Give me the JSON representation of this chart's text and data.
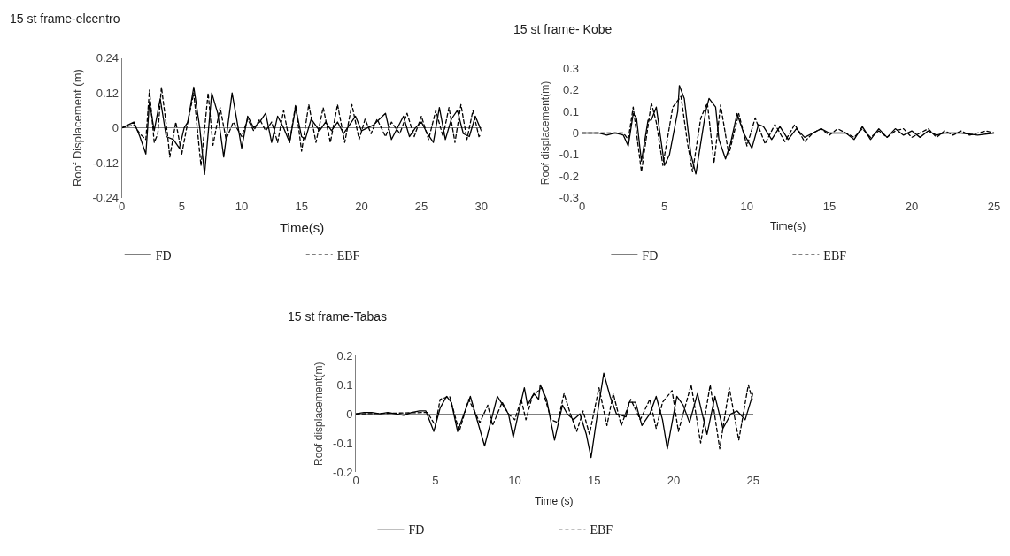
{
  "chart_data": [
    {
      "type": "line",
      "title": "15 st frame-elcentro",
      "xlabel": "Time(s)",
      "ylabel": "Roof Displacement (m)",
      "xlim": [
        0,
        30
      ],
      "xticks": [
        0,
        5,
        10,
        15,
        20,
        25,
        30
      ],
      "ylim": [
        -0.24,
        0.24
      ],
      "yticks": [
        -0.24,
        -0.12,
        0,
        0.12,
        0.24
      ],
      "legend": "bottom",
      "series": [
        {
          "name": "FD",
          "color": "#000000",
          "line_style": "solid",
          "x": [
            0,
            0.5,
            1,
            1.5,
            2,
            2.3,
            2.7,
            3.2,
            3.7,
            4.3,
            4.8,
            5.2,
            5.5,
            6,
            6.5,
            6.9,
            7.5,
            8,
            8.5,
            9.2,
            10,
            10.5,
            11,
            11.5,
            12,
            12.5,
            13,
            13.5,
            14,
            14.5,
            15,
            15.3,
            15.8,
            16.5,
            17,
            17.5,
            18,
            18.5,
            19.5,
            20,
            21,
            22,
            22.5,
            23.5,
            24,
            24.5,
            25,
            25.5,
            26,
            26.5,
            27,
            27.5,
            28,
            28.5,
            29,
            29.5,
            30
          ],
          "values": [
            0,
            0.01,
            0.02,
            -0.03,
            -0.09,
            0.09,
            -0.01,
            0.1,
            -0.03,
            -0.04,
            -0.07,
            0,
            0.02,
            0.14,
            0,
            -0.16,
            0.12,
            0.05,
            -0.1,
            0.12,
            -0.07,
            0.04,
            0,
            0.02,
            0.05,
            -0.05,
            0.04,
            0,
            -0.05,
            0.07,
            -0.03,
            -0.04,
            0.03,
            -0.01,
            0.02,
            -0.01,
            0.02,
            -0.02,
            0.04,
            -0.01,
            0.01,
            0.05,
            -0.04,
            0.04,
            -0.03,
            0,
            0.02,
            -0.02,
            -0.05,
            0.07,
            -0.04,
            0.03,
            0.06,
            -0.02,
            -0.03,
            0.04,
            -0.01
          ]
        },
        {
          "name": "EBF",
          "color": "#000000",
          "line_style": "dashed",
          "x": [
            0,
            1,
            1.5,
            2,
            2.3,
            2.7,
            3,
            3.3,
            3.8,
            4,
            4.5,
            5,
            5.5,
            6,
            6.6,
            7.2,
            7.6,
            8.2,
            8.7,
            9.3,
            10,
            10.5,
            11,
            11.5,
            12,
            12.5,
            13,
            13.5,
            14,
            14.5,
            15,
            15.6,
            16.2,
            16.8,
            17.4,
            18,
            18.6,
            19.2,
            19.8,
            20.3,
            20.8,
            21.3,
            22,
            22.5,
            23.2,
            23.8,
            24.4,
            25,
            25.6,
            26.2,
            26.8,
            27.3,
            27.8,
            28.3,
            28.8,
            29.3,
            29.8,
            30
          ],
          "values": [
            0,
            0.01,
            -0.02,
            -0.04,
            0.13,
            -0.05,
            -0.02,
            0.14,
            -0.02,
            -0.1,
            0.02,
            -0.09,
            0.02,
            0.12,
            -0.13,
            0.12,
            -0.06,
            0.07,
            -0.04,
            0.02,
            -0.03,
            0.03,
            -0.01,
            0.03,
            -0.01,
            0.02,
            -0.05,
            0.06,
            -0.05,
            0.08,
            -0.08,
            0.08,
            -0.05,
            0.07,
            -0.05,
            0.08,
            -0.05,
            0.08,
            -0.04,
            0.03,
            -0.02,
            0.03,
            -0.03,
            0.02,
            -0.02,
            0.05,
            -0.03,
            0.04,
            -0.04,
            0.06,
            -0.03,
            0.07,
            -0.05,
            0.08,
            -0.04,
            0.06,
            -0.03,
            -0.02
          ]
        }
      ]
    },
    {
      "type": "line",
      "title": "15 st frame- Kobe",
      "xlabel": "Time(s)",
      "ylabel": "Roof displacement(m)",
      "xlim": [
        0,
        25
      ],
      "xticks": [
        0,
        5,
        10,
        15,
        20,
        25
      ],
      "ylim": [
        -0.3,
        0.3
      ],
      "yticks": [
        -0.3,
        -0.2,
        -0.1,
        0,
        0.1,
        0.2,
        0.3
      ],
      "legend": "bottom",
      "series": [
        {
          "name": "FD",
          "color": "#000000",
          "line_style": "solid",
          "x": [
            0,
            1,
            1.5,
            2,
            2.5,
            2.8,
            3.1,
            3.3,
            3.6,
            4,
            4.2,
            4.5,
            5,
            5.3,
            5.8,
            5.9,
            6.2,
            6.6,
            6.9,
            7.5,
            7.7,
            8.1,
            8.3,
            8.7,
            9,
            9.4,
            9.8,
            10.3,
            10.7,
            11,
            11.5,
            12,
            12.5,
            13,
            13.5,
            14,
            14.5,
            15,
            16,
            16.5,
            17,
            17.5,
            18,
            18.5,
            19,
            19.5,
            20,
            20.5,
            21,
            21.5,
            22,
            23,
            24,
            25
          ],
          "values": [
            0,
            0,
            -0.01,
            0,
            -0.01,
            -0.06,
            0.09,
            0.07,
            -0.13,
            0.06,
            0.06,
            0.12,
            -0.15,
            -0.1,
            0.1,
            0.22,
            0.16,
            -0.1,
            -0.19,
            0.1,
            0.16,
            0.12,
            -0.03,
            -0.12,
            -0.05,
            0.09,
            0,
            -0.07,
            0.04,
            0.03,
            -0.03,
            0.03,
            -0.03,
            0.02,
            -0.02,
            0,
            0.02,
            0,
            0,
            -0.03,
            0.03,
            -0.03,
            0.02,
            -0.02,
            0.02,
            -0.01,
            0.01,
            -0.02,
            0.01,
            -0.01,
            0,
            0,
            -0.01,
            0
          ]
        },
        {
          "name": "EBF",
          "color": "#000000",
          "line_style": "dashed",
          "x": [
            0,
            2.5,
            2.8,
            3.1,
            3.6,
            4.2,
            4.5,
            4.9,
            5.5,
            6,
            6.4,
            6.7,
            7.2,
            7.6,
            8,
            8.4,
            8.9,
            9.5,
            10,
            10.5,
            11.1,
            11.7,
            12.3,
            12.9,
            13.5,
            14,
            14.5,
            15,
            15.5,
            16,
            16.5,
            17,
            17.5,
            18,
            18.5,
            19,
            19.5,
            20,
            20.5,
            21,
            21.5,
            22,
            22.5,
            23,
            23.5,
            24,
            24.5,
            25
          ],
          "values": [
            0,
            0,
            -0.03,
            0.12,
            -0.18,
            0.14,
            0.05,
            -0.15,
            0.12,
            0.17,
            -0.05,
            -0.18,
            0.07,
            0.14,
            -0.14,
            0.13,
            -0.1,
            0.09,
            -0.06,
            0.07,
            -0.05,
            0.04,
            -0.04,
            0.04,
            -0.04,
            0,
            0.02,
            -0.01,
            0.02,
            0,
            -0.02,
            0.02,
            -0.02,
            0.01,
            -0.02,
            0.01,
            0.02,
            -0.02,
            0,
            0.02,
            -0.02,
            0.01,
            -0.01,
            0.01,
            -0.01,
            0,
            0.01,
            0
          ]
        }
      ]
    },
    {
      "type": "line",
      "title": "15 st frame-Tabas",
      "xlabel": "Time (s)",
      "ylabel": "Roof displacement(m)",
      "xlim": [
        0,
        25
      ],
      "xticks": [
        0,
        5,
        10,
        15,
        20,
        25
      ],
      "ylim": [
        -0.2,
        0.2
      ],
      "yticks": [
        -0.2,
        -0.1,
        0,
        0.1,
        0.2
      ],
      "legend": "bottom",
      "series": [
        {
          "name": "FD",
          "color": "#000000",
          "line_style": "solid",
          "x": [
            0,
            0.5,
            1,
            1.5,
            2,
            2.5,
            3,
            3.5,
            4,
            4.4,
            4.9,
            5.3,
            5.7,
            6,
            6.4,
            7.2,
            8.1,
            8.9,
            9.6,
            9.9,
            10.3,
            10.6,
            10.8,
            11.2,
            11.5,
            11.6,
            12,
            12.5,
            13,
            13.3,
            13.7,
            14.1,
            14.5,
            14.8,
            15.2,
            15.6,
            16,
            16.4,
            17,
            17.2,
            17.6,
            18,
            18.5,
            18.9,
            19.3,
            19.6,
            20.2,
            20.6,
            21,
            21.5,
            22.1,
            22.6,
            23.1,
            23.6,
            24,
            24.5,
            25
          ],
          "values": [
            0,
            0.005,
            0.005,
            0,
            0.005,
            0,
            -0.005,
            0.005,
            0.01,
            0.01,
            -0.06,
            0.02,
            0.06,
            0.04,
            -0.06,
            0.06,
            -0.11,
            0.06,
            0,
            -0.08,
            0.02,
            0.09,
            0.03,
            0.07,
            0.05,
            0.1,
            0.05,
            -0.09,
            0.03,
            0,
            -0.02,
            0,
            -0.07,
            -0.15,
            0,
            0.14,
            0.06,
            0,
            -0.01,
            0.04,
            0.04,
            -0.04,
            0,
            0.06,
            -0.02,
            -0.12,
            0.06,
            0.03,
            -0.03,
            0.07,
            -0.07,
            0.06,
            -0.05,
            0,
            0.01,
            -0.02,
            0.07
          ]
        },
        {
          "name": "EBF",
          "color": "#000000",
          "line_style": "dashed",
          "x": [
            0,
            4.5,
            5,
            5.3,
            5.9,
            6.5,
            7.1,
            7.8,
            8.3,
            8.6,
            9.2,
            9.6,
            10,
            10.4,
            10.7,
            11.1,
            11.7,
            12.3,
            12.7,
            13.1,
            13.5,
            13.9,
            14.3,
            14.7,
            15.3,
            15.8,
            16.2,
            16.7,
            17.3,
            17.9,
            18.5,
            18.9,
            19.3,
            19.9,
            20.3,
            21.1,
            21.7,
            22.3,
            22.9,
            23.5,
            24.1,
            24.7,
            25
          ],
          "values": [
            0,
            0.005,
            -0.04,
            0.05,
            0.06,
            -0.06,
            0.05,
            -0.03,
            0.03,
            -0.04,
            0.04,
            0,
            -0.02,
            0.05,
            -0.02,
            0.06,
            0.09,
            -0.02,
            -0.03,
            0.07,
            0,
            -0.06,
            0.01,
            -0.07,
            0.09,
            -0.04,
            0.07,
            -0.04,
            0.05,
            -0.02,
            0.05,
            -0.05,
            0.04,
            0.08,
            -0.06,
            0.1,
            -0.1,
            0.1,
            -0.12,
            0.09,
            -0.09,
            0.1,
            0.04
          ]
        }
      ]
    }
  ]
}
